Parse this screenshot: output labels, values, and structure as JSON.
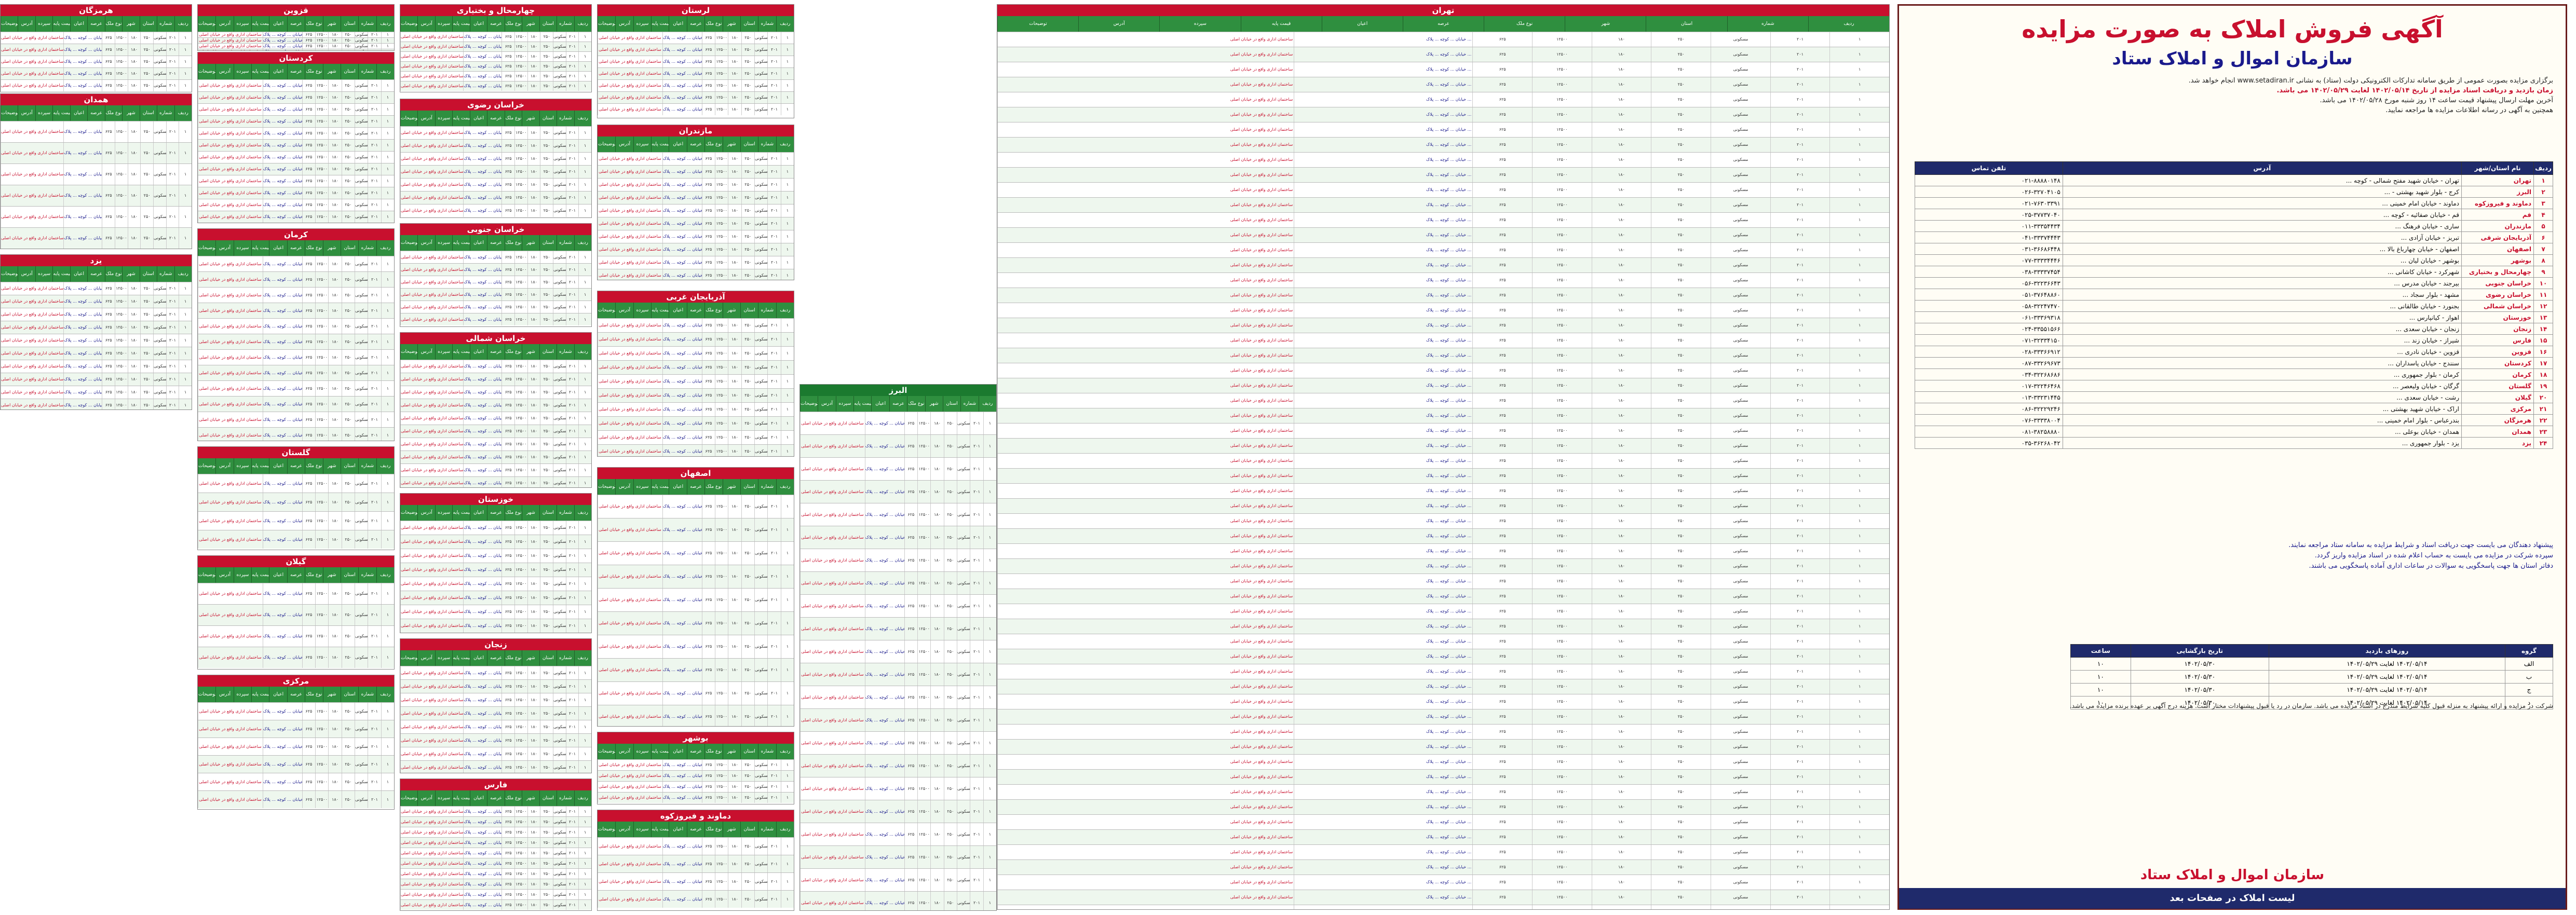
{
  "announcement": {
    "title": "آگهی فروش املاک به صورت مزایده",
    "subtitle": "سازمان اموال و املاک ستاد",
    "intro_lines": [
      "برگزاری مزایده بصورت عمومی از طریق سامانه تدارکات الکترونیکی دولت (ستاد) به نشانی www.setadiran.ir انجام خواهد شد.",
      "زمان بازدید و دریافت اسناد مزایده از تاریخ ۱۴۰۲/۰۵/۱۴ لغایت ۱۴۰۲/۰۵/۲۹ می باشد.",
      "آخرین مهلت ارسال پیشنهاد قیمت ساعت ۱۴ روز شنبه مورخ ۱۴۰۲/۰۵/۲۸ می باشد.",
      "همچنین به آگهی در رسانه اطلاعات مزایده ها مراجعه نمایید."
    ],
    "office_table": {
      "headers": [
        "ردیف",
        "نام استان/شهر",
        "آدرس",
        "تلفن تماس"
      ],
      "rows": [
        [
          "۱",
          "تهران",
          "تهران - خیابان شهید مفتح شمالی - کوچه ...",
          "۰۲۱-۸۸۸۸۰۱۴۸"
        ],
        [
          "۲",
          "البرز",
          "کرج - بلوار شهید بهشتی - ...",
          "۰۲۶-۳۲۷۰۴۱۰۵"
        ],
        [
          "۳",
          "دماوند و فیروزکوه",
          "دماوند - خیابان امام خمینی ...",
          "۰۲۱-۷۶۳۰۳۳۹۱"
        ],
        [
          "۴",
          "قم",
          "قم - خیابان صفائیه - کوچه ...",
          "۰۲۵-۳۷۷۳۷۰۴۰"
        ],
        [
          "۵",
          "مازندران",
          "ساری - خیابان فرهنگ ...",
          "۰۱۱-۳۳۳۵۴۴۳۴"
        ],
        [
          "۶",
          "آذربایجان شرقی",
          "تبریز - خیابان آزادی ...",
          "۰۴۱-۳۳۳۷۴۴۴۳"
        ],
        [
          "۷",
          "اصفهان",
          "اصفهان - خیابان چهارباغ بالا ...",
          "۰۳۱-۳۶۶۸۶۴۴۸"
        ],
        [
          "۸",
          "بوشهر",
          "بوشهر - خیابان لیان ...",
          "۰۷۷-۳۳۳۳۴۴۴۶"
        ],
        [
          "۹",
          "چهارمحال و بختیاری",
          "شهرکرد - خیابان کاشانی ...",
          "۰۳۸-۳۳۳۳۷۴۵۴"
        ],
        [
          "۱۰",
          "خراسان جنوبی",
          "بیرجند - خیابان مدرس ...",
          "۰۵۶-۳۲۲۳۶۶۴۳"
        ],
        [
          "۱۱",
          "خراسان رضوی",
          "مشهد - بلوار سجاد ...",
          "۰۵۱-۳۷۶۴۸۸۶۰"
        ],
        [
          "۱۲",
          "خراسان شمالی",
          "بجنورد - خیابان طالقانی ...",
          "۰۵۸-۳۲۲۴۷۴۷۰"
        ],
        [
          "۱۳",
          "خوزستان",
          "اهواز - کیانپارس ...",
          "۰۶۱-۳۳۳۶۹۳۱۸"
        ],
        [
          "۱۴",
          "زنجان",
          "زنجان - خیابان سعدی ...",
          "۰۲۴-۳۳۵۵۱۵۶۶"
        ],
        [
          "۱۵",
          "فارس",
          "شیراز - خیابان زند ...",
          "۰۷۱-۳۲۳۳۴۱۵۰"
        ],
        [
          "۱۶",
          "قزوین",
          "قزوین - خیابان نادری ...",
          "۰۲۸-۳۳۳۶۶۹۱۲"
        ],
        [
          "۱۷",
          "کردستان",
          "سنندج - خیابان پاسداران ...",
          "۰۸۷-۳۳۲۶۹۶۷۳"
        ],
        [
          "۱۸",
          "کرمان",
          "کرمان - بلوار جمهوری ...",
          "۰۳۴-۳۲۲۶۸۶۸۶"
        ],
        [
          "۱۹",
          "گلستان",
          "گرگان - خیابان ولیعصر ...",
          "۰۱۷-۳۲۲۴۶۴۶۸"
        ],
        [
          "۲۰",
          "گیلان",
          "رشت - خیابان سعدی ...",
          "۰۱۳-۳۳۲۳۱۴۴۵"
        ],
        [
          "۲۱",
          "مرکزی",
          "اراک - خیابان شهید بهشتی ...",
          "۰۸۶-۳۲۲۲۹۲۴۶"
        ],
        [
          "۲۲",
          "هرمزگان",
          "بندرعباس - بلوار امام خمینی ...",
          "۰۷۶-۳۳۳۳۸۰۰۴"
        ],
        [
          "۲۳",
          "همدان",
          "همدان - خیابان بوعلی ...",
          "۰۸۱-۳۸۲۵۸۸۸۰"
        ],
        [
          "۲۴",
          "یزد",
          "یزد - بلوار جمهوری ...",
          "۰۳۵-۳۶۲۶۸۰۴۲"
        ]
      ]
    },
    "notes": [
      "پیشنهاد دهندگان می بایست جهت دریافت اسناد و شرایط مزایده به سامانه ستاد مراجعه نمایند.",
      "سپرده شرکت در مزایده می بایست به حساب اعلام شده در اسناد مزایده واریز گردد.",
      "دفاتر استان ها جهت پاسخگویی به سوالات در ساعات اداری آماده پاسخگویی می باشند."
    ],
    "pay_table": {
      "headers": [
        "گروه",
        "روزهای بازدید",
        "تاریخ بازگشایی",
        "ساعت"
      ],
      "rows": [
        [
          "الف",
          "۱۴۰۲/۰۵/۱۴ لغایت ۱۴۰۲/۰۵/۲۹",
          "۱۴۰۲/۰۵/۳۰",
          "۱۰"
        ],
        [
          "ب",
          "۱۴۰۲/۰۵/۱۴ لغایت ۱۴۰۲/۰۵/۲۹",
          "۱۴۰۲/۰۵/۳۰",
          "۱۰"
        ],
        [
          "ج",
          "۱۴۰۲/۰۵/۱۴ لغایت ۱۴۰۲/۰۵/۲۹",
          "۱۴۰۲/۰۵/۳۰",
          "۱۰"
        ],
        [
          "د",
          "۱۴۰۲/۰۵/۱۴ لغایت ۱۴۰۲/۰۵/۲۹",
          "۱۴۰۲/۰۵/۳۰",
          "۱۰"
        ]
      ]
    },
    "fineprint": "شرکت در مزایده و ارائه پیشنهاد به منزله قبول کلیه شرایط مندرج در اسناد مزایده می باشد. سازمان در رد یا قبول پیشنهادات مختار است. هزینه درج آگهی بر عهده برنده مزایده می باشد.",
    "footer_org": "سازمان اموال و املاک ستاد",
    "footer_bar": "لیست املاک در صفحات بعد"
  },
  "listing_columns": [
    "ردیف",
    "شماره",
    "استان",
    "شهر",
    "نوع ملک",
    "عرصه",
    "اعیان",
    "قیمت پایه",
    "سپرده",
    "آدرس",
    "توضیحات"
  ],
  "blocks": [
    {
      "title": "هرمزگان",
      "rows": 5
    },
    {
      "title": "همدان",
      "rows": 6
    },
    {
      "title": "یزد",
      "rows": 10
    },
    {
      "title": "قزوین",
      "rows": 6
    },
    {
      "title": "کردستان",
      "rows": 12
    },
    {
      "title": "کرمان",
      "rows": 12
    },
    {
      "title": "گلستان",
      "rows": 4
    },
    {
      "title": "گیلان",
      "rows": 4
    },
    {
      "title": "مرکزی",
      "rows": 6
    },
    {
      "title": "چهارمحال و بختیاری",
      "rows": 6
    },
    {
      "title": "خراسان رضوی",
      "rows": 7
    },
    {
      "title": "خراسان جنوبی",
      "rows": 6
    },
    {
      "title": "خراسان شمالی",
      "rows": 10
    },
    {
      "title": "خوزستان",
      "rows": 8
    },
    {
      "title": "زنجان",
      "rows": 8
    },
    {
      "title": "فارس",
      "rows": 10
    },
    {
      "title": "لرستان",
      "rows": 7
    },
    {
      "title": "مازندران",
      "rows": 10
    },
    {
      "title": "آذربایجان غربی",
      "rows": 10
    },
    {
      "title": "اصفهان",
      "rows": 10
    },
    {
      "title": "بوشهر",
      "rows": 4
    },
    {
      "title": "دماوند و فیروزکوه",
      "rows": 4
    },
    {
      "title": "البرز",
      "rows": 22
    },
    {
      "title": "تهران",
      "rows": 60
    }
  ],
  "sample_row": {
    "desc": "ساختمان اداری واقع در خیابان اصلی",
    "addr": "خیابان ... کوچه ... پلاک ...",
    "cells": [
      "۱",
      "۲۰۱",
      "مسکونی",
      "۲۵۰",
      "۱۸۰",
      "۱۲۵۰۰",
      "۶۲۵"
    ]
  }
}
